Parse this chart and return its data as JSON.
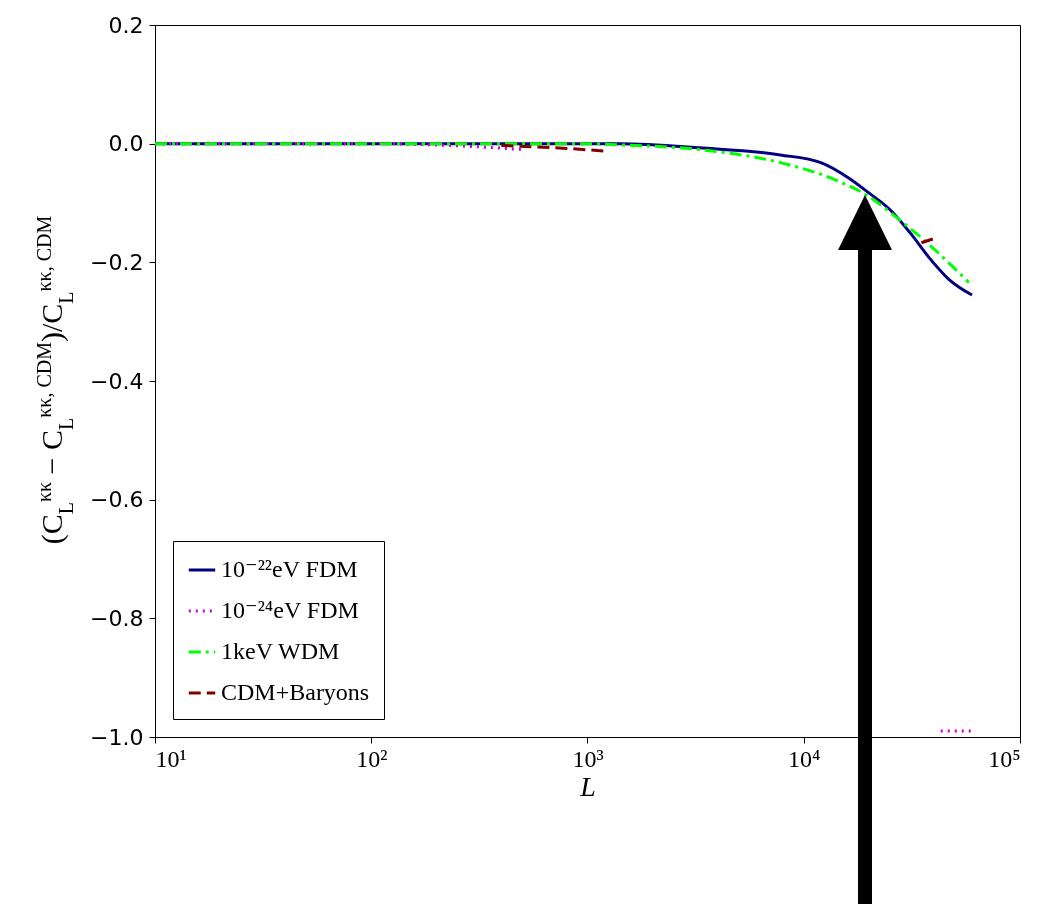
{
  "chart_data": {
    "type": "line",
    "xlabel": "L",
    "ylabel": "(C$_{L}$$^{κκ}$ − C$_{L}$$^{κκ, CDM}$)/C$_{L}$$^{κκ, CDM}$",
    "log": "x",
    "grid": false,
    "legend": "bottom left",
    "xlim": [
      10,
      100000
    ],
    "xticks": [
      {
        "value": 10,
        "label": "10¹"
      },
      {
        "value": 100,
        "label": "10²"
      },
      {
        "value": 1000,
        "label": "10³"
      },
      {
        "value": 10000,
        "label": "10⁴"
      },
      {
        "value": 100000,
        "label": "10⁵"
      }
    ],
    "ylim": [
      -1.0,
      0.2
    ],
    "yticks": [
      {
        "value": -1.0,
        "label": "−1.0"
      },
      {
        "value": -0.8,
        "label": "−0.8"
      },
      {
        "value": -0.6,
        "label": "−0.6"
      },
      {
        "value": -0.4,
        "label": "−0.4"
      },
      {
        "value": -0.2,
        "label": "−0.2"
      },
      {
        "value": 0.0,
        "label": "0.0"
      },
      {
        "value": 0.2,
        "label": "0.2"
      }
    ],
    "series": [
      {
        "name": "10⁻²²eV FDM",
        "color": "#000080",
        "line_style": "solid",
        "x": [
          10,
          100,
          1000,
          1400,
          3300,
          7800,
          12000,
          16000,
          20000,
          25000,
          31000,
          38000,
          47000,
          60000
        ],
        "values": [
          0,
          0,
          0,
          0,
          -0.007,
          -0.019,
          -0.032,
          -0.057,
          -0.083,
          -0.111,
          -0.15,
          -0.192,
          -0.229,
          -0.255
        ]
      },
      {
        "name": "10⁻²⁴eV FDM",
        "color": "#cc00cc",
        "line_style": "dotted",
        "x": [
          10,
          100,
          300,
          500,
          700,
          43000,
          60000
        ],
        "values": [
          0,
          0,
          -0.005,
          -0.01,
          null,
          -0.99,
          -0.99
        ]
      },
      {
        "name": "1keV WDM",
        "color": "#00ff00",
        "line_style": "dashdot",
        "x": [
          10,
          100,
          1000,
          1400,
          3300,
          7800,
          14000,
          20000,
          27000,
          38000,
          58000
        ],
        "values": [
          0,
          0,
          0,
          -0.002,
          -0.01,
          -0.032,
          -0.061,
          -0.089,
          -0.125,
          -0.17,
          -0.234
        ]
      },
      {
        "name": "CDM+Baryons",
        "color": "#800000",
        "line_style": "dashed",
        "x": [
          400,
          800,
          1260,
          3000,
          35000,
          40000
        ],
        "values": [
          -0.003,
          -0.008,
          -0.013,
          null,
          -0.167,
          -0.16
        ]
      }
    ]
  }
}
